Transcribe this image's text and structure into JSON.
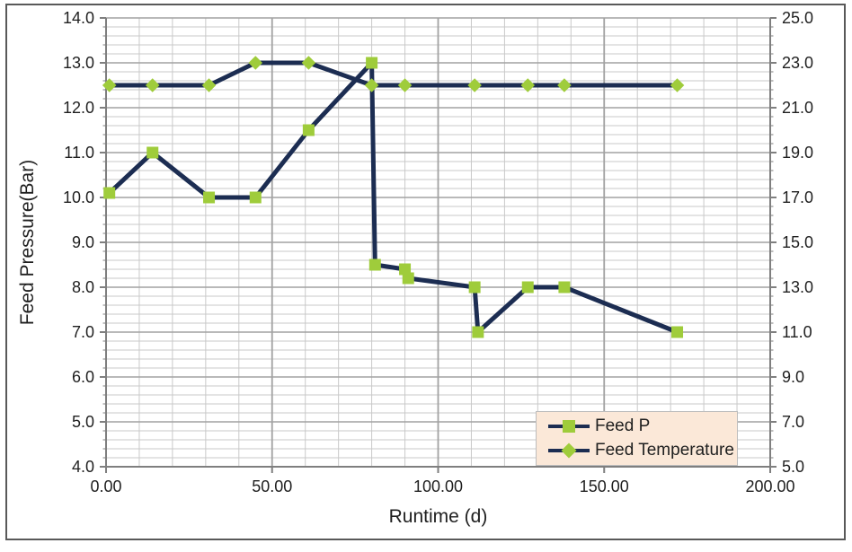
{
  "chart_data": {
    "type": "line",
    "title": "",
    "xlabel": "Runtime (d)",
    "ylabel_left": "Feed Pressure(Bar)",
    "x_axis": {
      "min": 0,
      "max": 200,
      "major_step": 50,
      "minor_step": 10,
      "tick_labels": [
        "0.00",
        "50.00",
        "100.00",
        "150.00",
        "200.00"
      ]
    },
    "y_axis_left": {
      "min": 4.0,
      "max": 14.0,
      "major_step": 1.0,
      "minor_step": 0.2,
      "tick_labels": [
        "14.0",
        "13.0",
        "12.0",
        "11.0",
        "10.0",
        "9.0",
        "8.0",
        "7.0",
        "6.0",
        "5.0",
        "4.0"
      ]
    },
    "y_axis_right": {
      "min": 5.0,
      "max": 25.0,
      "major_step": 2.0,
      "minor_step": 0.4,
      "tick_labels": [
        "25.0",
        "23.0",
        "21.0",
        "19.0",
        "17.0",
        "15.0",
        "13.0",
        "11.0",
        "9.0",
        "7.0",
        "5.0"
      ]
    },
    "grid": {
      "horizontal_minor": true,
      "vertical_minor": true
    },
    "series": [
      {
        "name": "Feed P",
        "axis": "left",
        "marker": "square",
        "points": [
          [
            1,
            10.1
          ],
          [
            14,
            11.0
          ],
          [
            31,
            10.0
          ],
          [
            45,
            10.0
          ],
          [
            61,
            11.5
          ],
          [
            80,
            13.0
          ],
          [
            81,
            8.5
          ],
          [
            90,
            8.4
          ],
          [
            91,
            8.2
          ],
          [
            111,
            8.0
          ],
          [
            112,
            7.0
          ],
          [
            127,
            8.0
          ],
          [
            138,
            8.0
          ],
          [
            172,
            7.0
          ]
        ]
      },
      {
        "name": "Feed Temperature",
        "axis": "right",
        "marker": "diamond",
        "points": [
          [
            1,
            22
          ],
          [
            14,
            22
          ],
          [
            31,
            22
          ],
          [
            45,
            23
          ],
          [
            61,
            23
          ],
          [
            80,
            22
          ],
          [
            90,
            22
          ],
          [
            111,
            22
          ],
          [
            127,
            22
          ],
          [
            138,
            22
          ],
          [
            172,
            22
          ]
        ]
      }
    ],
    "legend": {
      "position": "bottom-right",
      "entries": [
        "Feed P",
        "Feed Temperature"
      ]
    },
    "colors": {
      "line": "#1c2d52",
      "marker": "#9fcc3b",
      "legend_bg": "#fbe8d8",
      "legend_border": "#bdbdbd",
      "grid_minor": "#c9c9c9",
      "grid_major": "#a2a2a2",
      "axis": "#7f7f7f",
      "text": "#1f1f1f",
      "frame_border": "#595959"
    }
  }
}
